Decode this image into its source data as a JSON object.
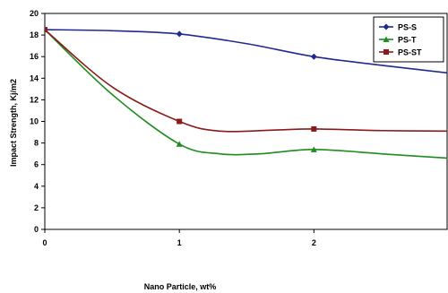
{
  "chart_data": {
    "type": "line",
    "xlabel": "Nano Particle, wt%",
    "ylabel": "Impact Strength, Kj/m2",
    "x_ticks": [
      0,
      1,
      2
    ],
    "xlim": [
      0,
      2.99
    ],
    "ylim": [
      0,
      20
    ],
    "y_ticks": [
      0,
      2,
      4,
      6,
      8,
      10,
      12,
      14,
      16,
      18,
      20
    ],
    "grid": false,
    "legend_position": "top-right",
    "series": [
      {
        "name": "PS-S",
        "color": "#1f2a8f",
        "marker": "diamond",
        "x": [
          0,
          1,
          2
        ],
        "y": [
          18.5,
          18.1,
          16.0
        ],
        "trend": [
          [
            0,
            18.5
          ],
          [
            0.5,
            18.4
          ],
          [
            1,
            18.1
          ],
          [
            1.5,
            17.2
          ],
          [
            2,
            16.0
          ],
          [
            2.5,
            15.2
          ],
          [
            2.99,
            14.5
          ]
        ]
      },
      {
        "name": "PS-T",
        "color": "#1e8c1e",
        "marker": "triangle",
        "x": [
          0,
          1,
          2
        ],
        "y": [
          18.5,
          7.9,
          7.4
        ],
        "trend": [
          [
            0,
            18.5
          ],
          [
            0.5,
            12.5
          ],
          [
            1,
            7.9
          ],
          [
            1.3,
            7.0
          ],
          [
            1.6,
            7.0
          ],
          [
            2,
            7.4
          ],
          [
            2.5,
            7.0
          ],
          [
            2.99,
            6.6
          ]
        ]
      },
      {
        "name": "PS-ST",
        "color": "#8b1a1a",
        "marker": "square",
        "x": [
          0,
          1,
          2
        ],
        "y": [
          18.5,
          10.0,
          9.3
        ],
        "trend": [
          [
            0,
            18.5
          ],
          [
            0.5,
            13.2
          ],
          [
            1,
            10.0
          ],
          [
            1.3,
            9.1
          ],
          [
            1.7,
            9.2
          ],
          [
            2,
            9.3
          ],
          [
            2.5,
            9.15
          ],
          [
            2.99,
            9.1
          ]
        ]
      }
    ]
  }
}
